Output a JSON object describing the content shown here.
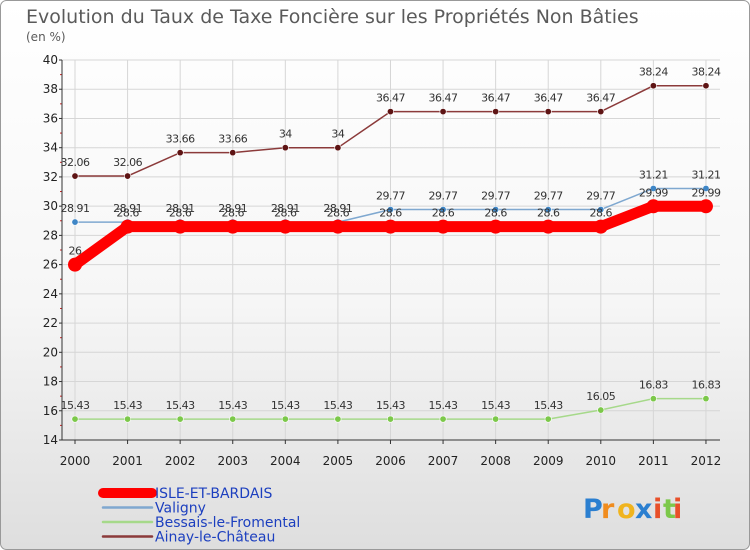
{
  "chart_data": {
    "type": "line",
    "title": "Evolution du Taux de Taxe Foncière sur les Propriétés Non Bâties",
    "subtitle": "(en %)",
    "xlabel": "",
    "ylabel": "",
    "x": [
      "2000",
      "2001",
      "2002",
      "2003",
      "2004",
      "2005",
      "2006",
      "2007",
      "2008",
      "2009",
      "2010",
      "2011",
      "2012"
    ],
    "ylim": [
      14,
      40
    ],
    "yticks": [
      14,
      16,
      18,
      20,
      22,
      24,
      26,
      28,
      30,
      32,
      34,
      36,
      38,
      40
    ],
    "grid": true,
    "legend_position": "bottom-left",
    "series": [
      {
        "name": "Ainay-le-Château",
        "color": "#8b3a3a",
        "marker_color": "#5e1414",
        "values": [
          32.06,
          32.06,
          33.66,
          33.66,
          34,
          34,
          36.47,
          36.47,
          36.47,
          36.47,
          36.47,
          38.24,
          38.24
        ],
        "labels": [
          "32.06",
          "32.06",
          "33.66",
          "33.66",
          "34",
          "34",
          "36.47",
          "36.47",
          "36.47",
          "36.47",
          "36.47",
          "38.24",
          "38.24"
        ]
      },
      {
        "name": "Valigny",
        "color": "#7fa8d0",
        "marker_color": "#3f86c6",
        "values": [
          28.91,
          28.91,
          28.91,
          28.91,
          28.91,
          28.91,
          29.77,
          29.77,
          29.77,
          29.77,
          29.77,
          31.21,
          31.21
        ],
        "labels": [
          "28.91",
          "28.91",
          "28.91",
          "28.91",
          "28.91",
          "28.91",
          "29.77",
          "29.77",
          "29.77",
          "29.77",
          "29.77",
          "31.21",
          "31.21"
        ]
      },
      {
        "name": "Bessais-le-Fromental",
        "color": "#a6d98a",
        "marker_color": "#7cc84a",
        "values": [
          15.43,
          15.43,
          15.43,
          15.43,
          15.43,
          15.43,
          15.43,
          15.43,
          15.43,
          15.43,
          16.05,
          16.83,
          16.83
        ],
        "labels": [
          "15.43",
          "15.43",
          "15.43",
          "15.43",
          "15.43",
          "15.43",
          "15.43",
          "15.43",
          "15.43",
          "15.43",
          "16.05",
          "16.83",
          "16.83"
        ]
      },
      {
        "name": "ISLE-ET-BARDAIS",
        "color": "#ff0000",
        "marker_color": "#ff0000",
        "values": [
          26,
          28.6,
          28.6,
          28.6,
          28.6,
          28.6,
          28.6,
          28.6,
          28.6,
          28.6,
          28.6,
          29.99,
          29.99
        ],
        "labels": [
          "26",
          "28.6",
          "28.6",
          "28.6",
          "28.6",
          "28.6",
          "28.6",
          "28.6",
          "28.6",
          "28.6",
          "28.6",
          "29.99",
          "29.99"
        ]
      }
    ],
    "legend": [
      "ISLE-ET-BARDAIS",
      "Valigny",
      "Bessais-le-Fromental",
      "Ainay-le-Château"
    ]
  },
  "brand": {
    "letters": [
      "P",
      "r",
      "o",
      "x",
      "i",
      "t",
      "i"
    ],
    "colors": [
      "#2b7fd0",
      "#f08c1e",
      "#f0b41e",
      "#2b7fd0",
      "#e8502a",
      "#7cc84a",
      "#e8502a"
    ]
  }
}
